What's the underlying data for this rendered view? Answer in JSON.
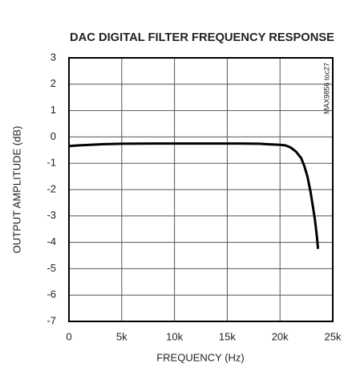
{
  "chart_data": {
    "type": "line",
    "title": "DAC DIGITAL FILTER FREQUENCY RESPONSE",
    "xlabel": "FREQUENCY (Hz)",
    "ylabel": "OUTPUT AMPLITUDE (dB)",
    "annotation": "MAX9856 toc27",
    "x": [
      0,
      500,
      1000,
      2000,
      3000,
      5000,
      8000,
      12000,
      16000,
      18000,
      19000,
      20000,
      20500,
      21000,
      21500,
      22000,
      22300,
      22600,
      22900,
      23100,
      23300,
      23500,
      23600
    ],
    "values": [
      -0.35,
      -0.33,
      -0.32,
      -0.3,
      -0.28,
      -0.26,
      -0.25,
      -0.25,
      -0.25,
      -0.26,
      -0.28,
      -0.3,
      -0.32,
      -0.4,
      -0.55,
      -0.8,
      -1.1,
      -1.5,
      -2.1,
      -2.6,
      -3.1,
      -3.8,
      -4.25
    ],
    "color": "#000000",
    "xlim": [
      0,
      25000
    ],
    "xticks": [
      0,
      {
        "value": 5000,
        "label": "5k"
      },
      {
        "value": 10000,
        "label": "10k"
      },
      {
        "value": 15000,
        "label": "15k"
      },
      {
        "value": 20000,
        "label": "20k"
      },
      {
        "value": 25000,
        "label": "25k"
      }
    ],
    "ylim": [
      -7,
      3
    ],
    "yticks": [
      -7,
      -6,
      -5,
      -4,
      -3,
      -2,
      -1,
      0,
      1,
      2,
      3
    ],
    "grid": true
  }
}
